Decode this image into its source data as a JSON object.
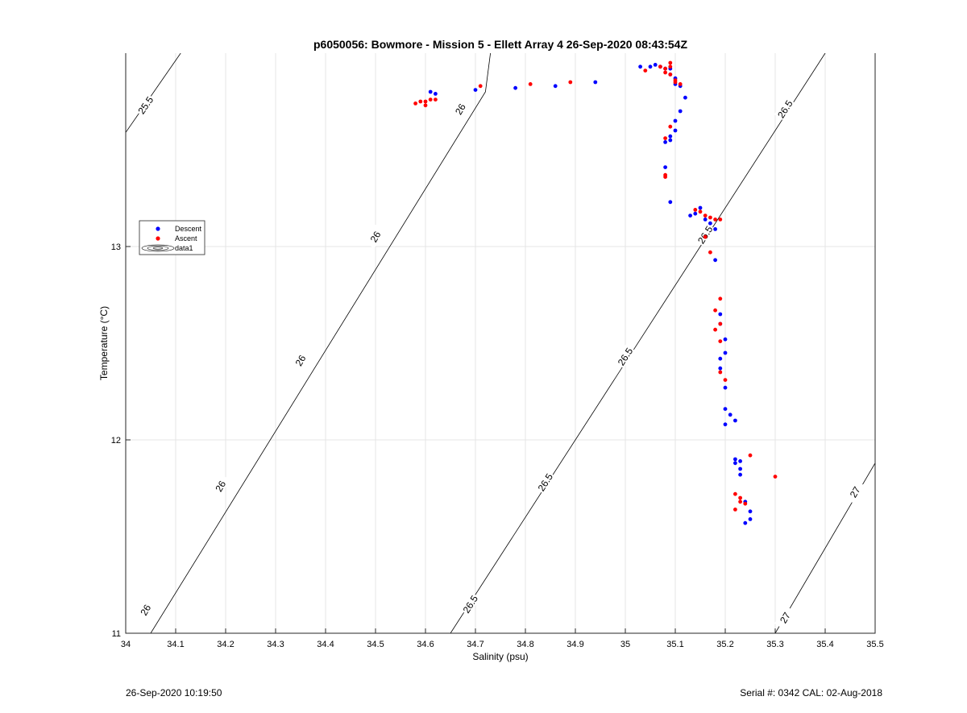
{
  "chart_data": {
    "type": "scatter",
    "title": "p6050056: Bowmore - Mission 5 - Ellett Array 4 26-Sep-2020 08:43:54Z",
    "xlabel": "Salinity (psu)",
    "ylabel": "Temperature (°C)",
    "xlim": [
      34,
      35.5
    ],
    "ylim": [
      11,
      14
    ],
    "xticks": [
      "34",
      "34.1",
      "34.2",
      "34.3",
      "34.4",
      "34.5",
      "34.6",
      "34.7",
      "34.8",
      "34.9",
      "35",
      "35.1",
      "35.2",
      "35.3",
      "35.4",
      "35.5"
    ],
    "yticks": [
      "11",
      "12",
      "13"
    ],
    "grid": true,
    "legend": {
      "placement": "left-middle",
      "entries": [
        {
          "label": "Descent",
          "color": "#0000ff",
          "marker": "dot"
        },
        {
          "label": "Ascent",
          "color": "#ff0000",
          "marker": "dot"
        },
        {
          "label": "data1",
          "marker": "contour"
        }
      ]
    },
    "density_contours": [
      {
        "label": "25.5",
        "points": [
          [
            34.0,
            13.59
          ],
          [
            34.11,
            14.0
          ]
        ],
        "labels": [
          {
            "text": "25.5",
            "x": 34.04,
            "y": 13.73
          }
        ]
      },
      {
        "label": "26",
        "points": [
          [
            34.05,
            11.0
          ],
          [
            34.72,
            13.8
          ],
          [
            34.73,
            14.0
          ]
        ],
        "labels": [
          {
            "text": "26",
            "x": 34.04,
            "y": 11.12
          },
          {
            "text": "26",
            "x": 34.19,
            "y": 11.76
          },
          {
            "text": "26",
            "x": 34.35,
            "y": 12.41
          },
          {
            "text": "26",
            "x": 34.5,
            "y": 13.05
          },
          {
            "text": "26",
            "x": 34.67,
            "y": 13.71
          }
        ]
      },
      {
        "label": "26.5",
        "points": [
          [
            34.65,
            11.0
          ],
          [
            35.4,
            14.0
          ]
        ],
        "labels": [
          {
            "text": "26.5",
            "x": 34.69,
            "y": 11.15
          },
          {
            "text": "26.5",
            "x": 34.84,
            "y": 11.78
          },
          {
            "text": "26.5",
            "x": 35.0,
            "y": 12.43
          },
          {
            "text": "26.5",
            "x": 35.16,
            "y": 13.06
          },
          {
            "text": "26.5",
            "x": 35.32,
            "y": 13.71
          }
        ]
      },
      {
        "label": "27",
        "points": [
          [
            35.3,
            11.0
          ],
          [
            35.5,
            11.88
          ]
        ],
        "labels": [
          {
            "text": "27",
            "x": 35.32,
            "y": 11.08
          },
          {
            "text": "27",
            "x": 35.46,
            "y": 11.73
          }
        ]
      }
    ],
    "series": [
      {
        "name": "Descent",
        "color": "#0000ff",
        "x": [
          34.61,
          34.62,
          34.7,
          34.78,
          34.86,
          34.94,
          35.03,
          35.05,
          35.06,
          35.07,
          35.08,
          35.09,
          35.09,
          35.1,
          35.1,
          35.11,
          35.12,
          35.11,
          35.1,
          35.1,
          35.09,
          35.09,
          35.08,
          35.08,
          35.09,
          35.13,
          35.14,
          35.15,
          35.16,
          35.17,
          35.18,
          35.18,
          35.19,
          35.19,
          35.2,
          35.2,
          35.19,
          35.19,
          35.2,
          35.2,
          35.21,
          35.2,
          35.22,
          35.22,
          35.23,
          35.23,
          35.24,
          35.25,
          35.25,
          35.24,
          35.22,
          35.23
        ],
        "y": [
          13.8,
          13.79,
          13.81,
          13.82,
          13.83,
          13.85,
          13.93,
          13.93,
          13.94,
          13.93,
          13.92,
          13.92,
          13.89,
          13.87,
          13.84,
          13.83,
          13.77,
          13.7,
          13.65,
          13.6,
          13.57,
          13.55,
          13.54,
          13.41,
          13.23,
          13.16,
          13.17,
          13.2,
          13.14,
          13.12,
          13.09,
          12.93,
          12.65,
          12.6,
          12.52,
          12.45,
          12.42,
          12.37,
          12.27,
          12.16,
          12.13,
          12.08,
          12.1,
          11.88,
          11.85,
          11.82,
          11.68,
          11.63,
          11.59,
          11.57,
          11.9,
          11.89
        ]
      },
      {
        "name": "Ascent",
        "color": "#ff0000",
        "x": [
          34.58,
          34.59,
          34.6,
          34.61,
          34.62,
          34.6,
          34.71,
          34.81,
          34.89,
          35.04,
          35.07,
          35.08,
          35.09,
          35.09,
          35.08,
          35.09,
          35.1,
          35.1,
          35.11,
          35.09,
          35.08,
          35.08,
          35.08,
          35.14,
          35.15,
          35.16,
          35.17,
          35.18,
          35.17,
          35.19,
          35.16,
          35.19,
          35.18,
          35.18,
          35.19,
          35.19,
          35.19,
          35.2,
          35.25,
          35.3,
          35.22,
          35.23,
          35.23,
          35.24,
          35.22
        ],
        "y": [
          13.74,
          13.75,
          13.75,
          13.76,
          13.76,
          13.73,
          13.83,
          13.84,
          13.85,
          13.91,
          13.93,
          13.92,
          13.93,
          13.95,
          13.9,
          13.89,
          13.86,
          13.85,
          13.84,
          13.62,
          13.56,
          13.37,
          13.36,
          13.19,
          13.18,
          13.16,
          13.15,
          13.14,
          12.97,
          12.73,
          13.05,
          13.14,
          12.67,
          12.57,
          12.6,
          12.51,
          12.35,
          12.31,
          11.92,
          11.81,
          11.72,
          11.7,
          11.68,
          11.67,
          11.64
        ]
      }
    ]
  },
  "footer": {
    "left": "26-Sep-2020 10:19:50",
    "right": "Serial #: 0342  CAL: 02-Aug-2018"
  }
}
